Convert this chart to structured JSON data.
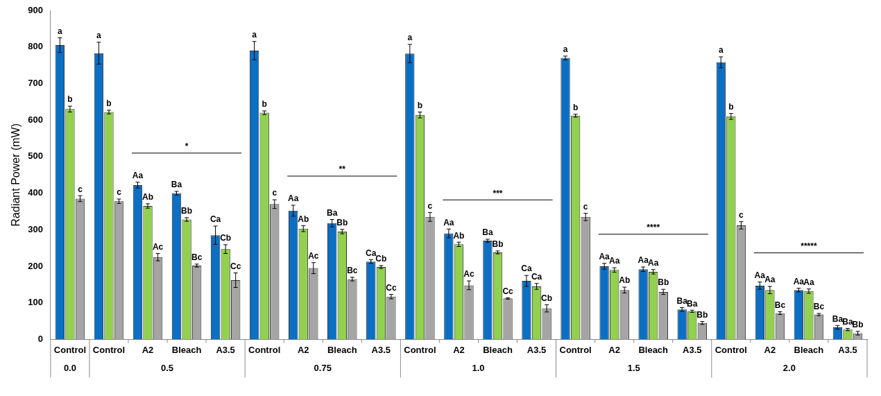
{
  "chart_data": {
    "type": "bar",
    "ylabel": "Radiant Power (mW)",
    "categories": [
      "Control",
      "Control",
      "A2",
      "Bleach",
      "A3.5",
      "Control",
      "A2",
      "Bleach",
      "A3.5",
      "Control",
      "A2",
      "Bleach",
      "A3.5",
      "Control",
      "A2",
      "Bleach",
      "A3.5",
      "Control",
      "A2",
      "Bleach",
      "A3.5"
    ],
    "series": [
      {
        "color": "#0b6fc4",
        "values": [
          805,
          783,
          422,
          400,
          285,
          790,
          352,
          318,
          213,
          782,
          290,
          270,
          160,
          770,
          200,
          192,
          82,
          758,
          147,
          135,
          33
        ],
        "errors": [
          20,
          30,
          8,
          5,
          25,
          25,
          15,
          10,
          5,
          25,
          12,
          4,
          15,
          5,
          8,
          6,
          5,
          15,
          10,
          5,
          5
        ],
        "value_labels": [
          "a",
          "a",
          "Aa",
          "Ba",
          "Ca",
          "a",
          "Aa",
          "Ba",
          "Ca",
          "a",
          "Aa",
          "Ba",
          "Ca",
          "a",
          "Aa",
          "Aa",
          "Ba",
          "a",
          "Aa",
          "Aa",
          "Ba"
        ]
      },
      {
        "color": "#92d050",
        "values": [
          630,
          622,
          365,
          328,
          247,
          620,
          303,
          295,
          198,
          614,
          260,
          238,
          145,
          612,
          190,
          185,
          77,
          610,
          135,
          132,
          27
        ],
        "errors": [
          8,
          5,
          6,
          5,
          12,
          5,
          8,
          6,
          4,
          8,
          6,
          4,
          8,
          4,
          6,
          6,
          3,
          8,
          10,
          6,
          3
        ],
        "value_labels": [
          "b",
          "b",
          "Ab",
          "Bb",
          "Cb",
          "b",
          "Ab",
          "Bb",
          "Cb",
          "b",
          "Ab",
          "Bb",
          "Ca",
          "b",
          "Aa",
          "Aa",
          "Ba",
          "b",
          "Aa",
          "Aa",
          "Ba"
        ]
      },
      {
        "color": "#a5a5a5",
        "values": [
          385,
          378,
          225,
          202,
          162,
          370,
          195,
          165,
          117,
          335,
          148,
          112,
          85,
          335,
          135,
          130,
          45,
          312,
          72,
          68,
          17
        ],
        "errors": [
          8,
          6,
          10,
          4,
          20,
          12,
          15,
          5,
          6,
          12,
          12,
          2,
          10,
          10,
          8,
          7,
          4,
          10,
          4,
          3,
          5
        ],
        "value_labels": [
          "c",
          "c",
          "Ac",
          "Bc",
          "Cc",
          "c",
          "Ac",
          "Bc",
          "Cc",
          "c",
          "Ac",
          "Cc",
          "Cb",
          "c",
          "Ab",
          "Bb",
          "Bb",
          "c",
          "Bc",
          "Bc",
          "Bb"
        ]
      }
    ],
    "annotations": [
      "0.0",
      "0.5",
      "0.75",
      "1.0",
      "1.5",
      "2.0",
      "*",
      "**",
      "***",
      "****",
      "*****"
    ],
    "ylim": [
      0,
      900
    ],
    "yticks": [
      0,
      100,
      200,
      300,
      400,
      500,
      600,
      700,
      800,
      900
    ],
    "grid": false,
    "legend": false
  }
}
